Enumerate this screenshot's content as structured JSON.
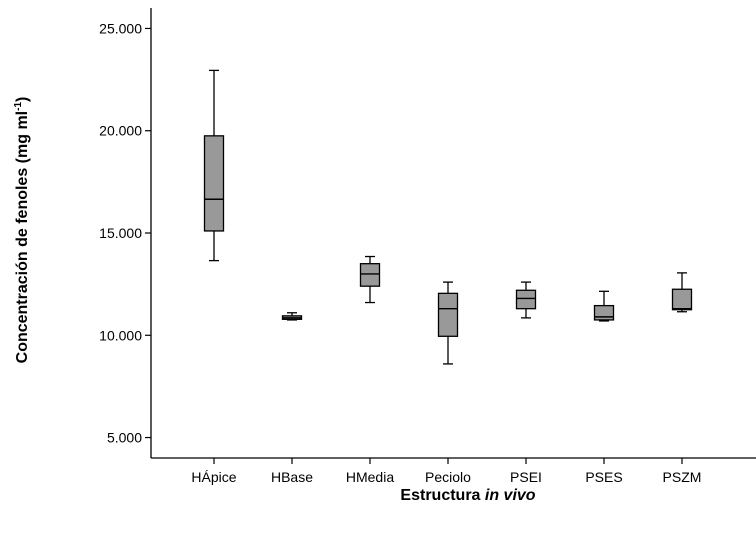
{
  "chart_data": {
    "type": "box",
    "title": "",
    "xlabel": {
      "prefix": "Estructura ",
      "italic": "in vivo"
    },
    "ylabel": {
      "main": "Concentración de fenoles (mg ml",
      "sup": "-1",
      "suffix": ")"
    },
    "ylim": [
      4000,
      26000
    ],
    "yticks": [
      5000,
      10000,
      15000,
      20000,
      25000
    ],
    "ytick_labels": [
      "5.000",
      "10.000",
      "15.000",
      "20.000",
      "25.000"
    ],
    "grid": false,
    "legend": "none",
    "box_color": "#999999",
    "line_color": "#000000",
    "categories": [
      "HÁpice",
      "HBase",
      "HMedia",
      "Peciolo",
      "PSEI",
      "PSES",
      "PSZM"
    ],
    "boxes": [
      {
        "min": 13650,
        "q1": 15100,
        "median": 16650,
        "q3": 19750,
        "max": 22950
      },
      {
        "min": 10750,
        "q1": 10780,
        "median": 10850,
        "q3": 10950,
        "max": 11100
      },
      {
        "min": 11600,
        "q1": 12400,
        "median": 13000,
        "q3": 13500,
        "max": 13850
      },
      {
        "min": 8600,
        "q1": 9950,
        "median": 11300,
        "q3": 12050,
        "max": 12600
      },
      {
        "min": 10850,
        "q1": 11300,
        "median": 11800,
        "q3": 12200,
        "max": 12600
      },
      {
        "min": 10700,
        "q1": 10750,
        "median": 10900,
        "q3": 11450,
        "max": 12150
      },
      {
        "min": 11150,
        "q1": 11250,
        "median": 11300,
        "q3": 12250,
        "max": 13050
      }
    ]
  }
}
